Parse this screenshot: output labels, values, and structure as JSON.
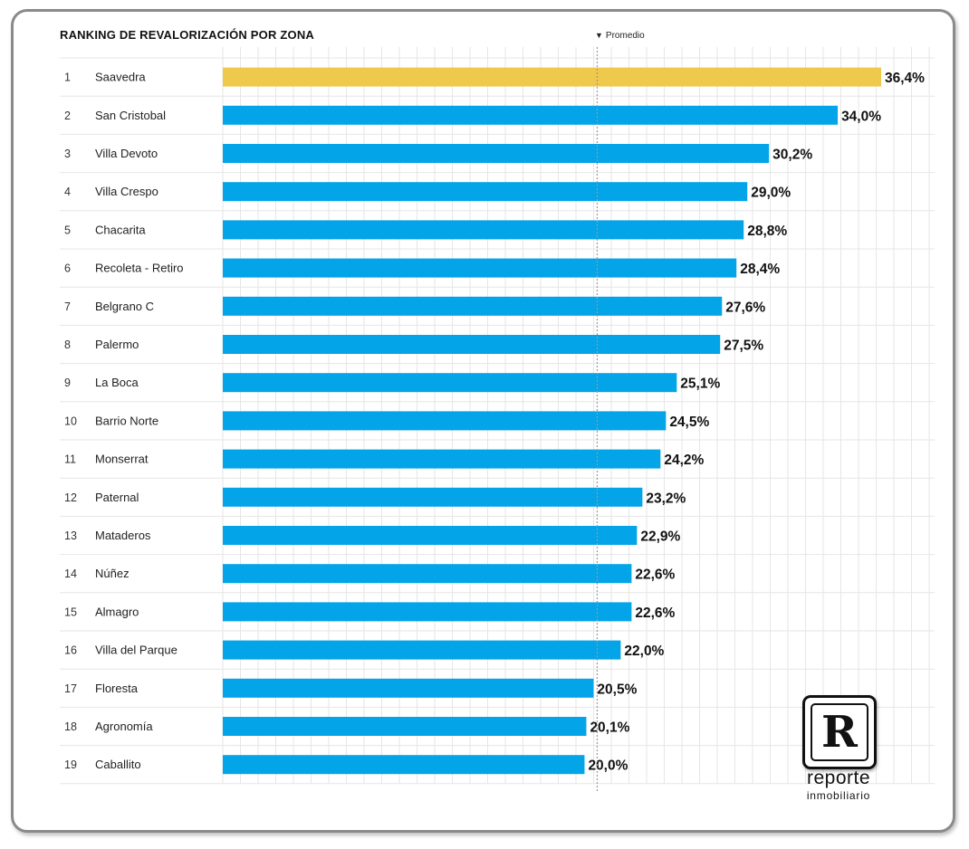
{
  "colors": {
    "highlight": "#efc94c",
    "bar": "#03a4e8",
    "text": "#111111",
    "grid": "#e6e6e6",
    "average_line": "#9a9a9a"
  },
  "chart_data": {
    "type": "bar",
    "orientation": "horizontal",
    "title": "RANKING DE REVALORIZACIÓN POR ZONA",
    "legend_label": "Promedio",
    "value_suffix": "%",
    "average_value": 20.7,
    "xlim": [
      0,
      38.4
    ],
    "ranks": [
      "1",
      "2",
      "3",
      "4",
      "5",
      "6",
      "7",
      "8",
      "9",
      "10",
      "11",
      "12",
      "13",
      "14",
      "15",
      "16",
      "17",
      "18",
      "19"
    ],
    "categories": [
      "Saavedra",
      "San Cristobal",
      "Villa Devoto",
      "Villa Crespo",
      "Chacarita",
      "Recoleta - Retiro",
      "Belgrano C",
      "Palermo",
      "La Boca",
      "Barrio Norte",
      "Monserrat",
      "Paternal",
      "Mataderos",
      "Núñez",
      "Almagro",
      "Villa del Parque",
      "Floresta",
      "Agronomía",
      "Caballito"
    ],
    "values": [
      36.4,
      34.0,
      30.2,
      29.0,
      28.8,
      28.4,
      27.6,
      27.5,
      25.1,
      24.5,
      24.2,
      23.2,
      22.9,
      22.6,
      22.6,
      22.0,
      20.5,
      20.1,
      20.0
    ],
    "labels": [
      "36,4%",
      "34,0%",
      "30,2%",
      "29,0%",
      "28,8%",
      "28,4%",
      "27,6%",
      "27,5%",
      "25,1%",
      "24,5%",
      "24,2%",
      "23,2%",
      "22,9%",
      "22,6%",
      "22,6%",
      "22,0%",
      "20,5%",
      "20,1%",
      "20,0%"
    ],
    "highlight_index": 0
  },
  "logo": {
    "letter": "R",
    "word1": "reporte",
    "word2": "inmobiliario"
  }
}
